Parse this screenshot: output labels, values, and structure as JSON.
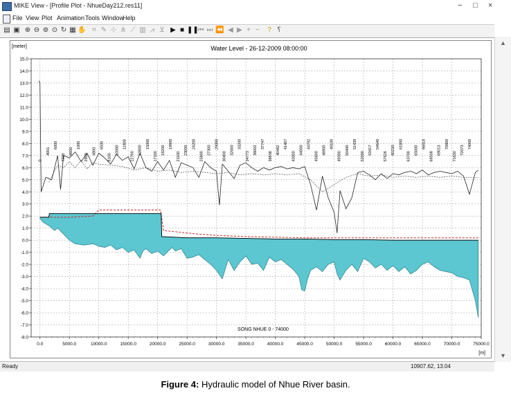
{
  "window": {
    "title": "MIKE View - [Profile Plot - NhueDay212.res11]",
    "controls": [
      "−",
      "□",
      "×"
    ]
  },
  "menu": [
    "File",
    "View",
    "Plot",
    "Animation",
    "Tools",
    "Window",
    "Help"
  ],
  "toolbar": {
    "icons": [
      "print-icon",
      "save-icon",
      "zoom-in-icon",
      "zoom-out-icon",
      "zoom-window-icon",
      "zoom-full-icon",
      "refresh-icon",
      "properties-icon",
      "pan-hand-icon",
      "select-icon",
      "edit-icon",
      "measure-icon",
      "branch-icon",
      "profile-icon",
      "table-icon",
      "graph-icon",
      "cross-section-icon",
      "play-icon",
      "stop-icon",
      "pause-icon",
      "first-frame-icon",
      "last-frame-icon",
      "step-back-icon",
      "step-forward-icon",
      "previous-icon",
      "next-icon",
      "add-icon",
      "remove-icon",
      "help-icon",
      "context-help-icon"
    ]
  },
  "status": {
    "left": "Ready",
    "right": "10907.62, 13.04"
  },
  "caption": {
    "prefix": "Figure 4:",
    "text": " Hydraulic model of Nhue River basin."
  },
  "colors": {
    "bed_fill": "#5cc6d1",
    "bed_stroke": "#1a6f78",
    "water_line": "#000000",
    "red_dashed": "#cc2222",
    "grid": "#9a9a9a"
  },
  "chart_data": {
    "type": "area",
    "title": "Water Level - 26-12-2009 08:00:00",
    "ylabel": "[meter]",
    "xlabel": "[m]",
    "bottom_label": "SONG NHUE 0 - 74000",
    "xlim": [
      -1500,
      75000
    ],
    "ylim": [
      -8.0,
      15.0
    ],
    "grid": true,
    "yticks": [
      15.0,
      14.0,
      13.0,
      12.0,
      11.0,
      10.0,
      9.0,
      8.0,
      7.0,
      6.0,
      5.0,
      4.0,
      3.0,
      2.0,
      1.0,
      0.0,
      -1.0,
      -2.0,
      -3.0,
      -4.0,
      -5.0,
      -6.0,
      -7.0,
      -8.0
    ],
    "xticks": [
      0,
      5000,
      10000,
      15000,
      20000,
      25000,
      30000,
      35000,
      40000,
      45000,
      50000,
      55000,
      60000,
      65000,
      70000,
      75000
    ],
    "series": [
      {
        "role": "bed",
        "x": [
          0,
          500,
          1500,
          2500,
          3000,
          4000,
          5000,
          6000,
          7500,
          9000,
          10000,
          11000,
          12000,
          13000,
          14000,
          15000,
          16000,
          17000,
          17500,
          18000,
          19000,
          20000,
          21000,
          22000,
          22500,
          23000,
          24000,
          25000,
          26000,
          27000,
          28000,
          29000,
          30000,
          31000,
          32000,
          33000,
          34000,
          35000,
          36000,
          37000,
          38000,
          39000,
          40000,
          41000,
          42000,
          43000,
          44000,
          44500,
          45000,
          45500,
          46000,
          47000,
          48000,
          49000,
          50000,
          50500,
          51000,
          52000,
          53000,
          54000,
          55000,
          56000,
          57000,
          58000,
          59000,
          60000,
          61000,
          62000,
          63000,
          64000,
          65000,
          66000,
          67000,
          68000,
          69000,
          70000,
          71000,
          72000,
          73000,
          74000,
          74500
        ],
        "y": [
          1.8,
          1.5,
          1.2,
          0.8,
          1.0,
          0.5,
          0.0,
          -0.3,
          -0.4,
          -0.3,
          -0.5,
          -0.6,
          -0.4,
          -0.8,
          -0.6,
          -1.0,
          -0.8,
          -1.5,
          -0.9,
          -0.7,
          -1.1,
          -0.9,
          -1.3,
          -0.8,
          -0.6,
          -0.9,
          -0.7,
          -1.5,
          -1.4,
          -1.2,
          -1.6,
          -2.0,
          -2.5,
          -3.2,
          -1.6,
          -2.5,
          -1.8,
          -1.3,
          -2.0,
          -1.9,
          -2.5,
          -1.4,
          -1.8,
          -1.6,
          -2.0,
          -2.4,
          -3.0,
          -4.1,
          -4.2,
          -3.2,
          -2.5,
          -2.2,
          -2.6,
          -2.0,
          -1.8,
          -2.8,
          -3.3,
          -2.5,
          -2.0,
          -2.6,
          -1.5,
          -1.8,
          -2.3,
          -2.0,
          -2.5,
          -2.1,
          -2.6,
          -2.2,
          -2.8,
          -2.5,
          -2.0,
          -1.8,
          -2.2,
          -2.5,
          -2.6,
          -2.7,
          -3.0,
          -3.1,
          -3.3,
          -5.0,
          -6.4
        ]
      },
      {
        "role": "water_level",
        "x": [
          0,
          1500,
          1600,
          20600,
          20700,
          25000,
          30000,
          35000,
          40000,
          45000,
          50000,
          55000,
          60000,
          65000,
          70000,
          74500
        ],
        "y": [
          1.9,
          1.9,
          2.2,
          2.2,
          0.3,
          0.2,
          0.2,
          0.15,
          0.1,
          0.1,
          0.05,
          0.05,
          0.0,
          0.0,
          0.0,
          0.0
        ]
      },
      {
        "role": "red_dashed",
        "x": [
          0,
          5000,
          9000,
          10000,
          20500,
          21000,
          27000,
          30000,
          35000,
          45000,
          55000,
          65000,
          74500
        ],
        "y": [
          1.9,
          1.9,
          2.0,
          2.5,
          2.5,
          0.8,
          0.5,
          0.4,
          0.3,
          0.2,
          0.2,
          0.2,
          0.2
        ]
      },
      {
        "role": "bank_left",
        "x": [
          -200,
          0,
          200,
          1000,
          2000,
          3000,
          3500,
          4000,
          5000,
          6000,
          7000,
          8000,
          9000,
          10000,
          11000,
          12000,
          13000,
          14000,
          15000,
          16000,
          17000,
          18000,
          19000,
          20000,
          21000,
          22000,
          23000,
          24000,
          25000,
          26000,
          27000,
          28000,
          29000,
          30000,
          30500,
          31000,
          32000,
          33000,
          34000,
          35000,
          36000,
          37000,
          38000,
          39000,
          40000,
          41000,
          42000,
          43000,
          44000,
          45000,
          46000,
          47000,
          48000,
          49000,
          50000,
          50500,
          51000,
          52000,
          53000,
          54000,
          55000,
          56000,
          57000,
          58000,
          59000,
          60000,
          61000,
          62000,
          63000,
          64000,
          65000,
          66000,
          67000,
          68000,
          69000,
          70000,
          71000,
          72000,
          73000,
          74000,
          74500
        ],
        "y": [
          13.2,
          13.0,
          4.0,
          5.2,
          5.0,
          7.0,
          4.2,
          7.0,
          6.8,
          7.3,
          6.5,
          7.2,
          6.2,
          7.2,
          6.8,
          6.3,
          7.1,
          6.6,
          6.9,
          5.9,
          7.2,
          6.0,
          5.7,
          6.5,
          5.8,
          6.6,
          5.2,
          6.4,
          6.2,
          6.0,
          5.2,
          6.5,
          6.0,
          5.7,
          2.9,
          6.3,
          5.7,
          5.1,
          6.2,
          6.4,
          6.0,
          5.7,
          6.0,
          5.8,
          6.0,
          6.1,
          5.9,
          6.0,
          5.9,
          6.1,
          4.6,
          2.5,
          5.3,
          3.5,
          2.3,
          0.6,
          4.1,
          2.6,
          3.5,
          5.6,
          5.7,
          5.4,
          5.0,
          5.5,
          5.1,
          5.5,
          5.4,
          5.6,
          5.7,
          5.5,
          5.8,
          5.4,
          5.6,
          5.7,
          5.6,
          5.5,
          5.7,
          5.3,
          3.8,
          5.6,
          5.8
        ]
      },
      {
        "role": "bank_right",
        "x": [
          1500,
          3000,
          4000,
          5000,
          6000,
          7000,
          8000,
          9000,
          10000,
          12000,
          14000,
          16000,
          18000,
          20000,
          22000,
          24000,
          26000,
          28000,
          30000,
          32000,
          34000,
          36000,
          38000,
          40000,
          42000,
          44000,
          46000,
          48000,
          50000,
          52000,
          54000,
          56000,
          58000,
          60000,
          62000,
          64000,
          66000,
          68000,
          70000,
          72000,
          74500
        ],
        "y": [
          4.8,
          6.2,
          6.0,
          6.5,
          6.0,
          6.6,
          5.9,
          6.4,
          6.3,
          6.2,
          6.1,
          5.8,
          6.0,
          5.7,
          5.8,
          5.6,
          5.7,
          5.6,
          5.5,
          5.6,
          5.4,
          5.5,
          5.4,
          5.5,
          5.4,
          5.5,
          5.0,
          4.0,
          4.6,
          5.2,
          5.5,
          5.3,
          5.4,
          5.2,
          5.3,
          5.2,
          5.3,
          5.2,
          5.3,
          5.2,
          5.2
        ]
      }
    ],
    "annotations": [
      "0",
      "4001",
      "6000",
      "7300",
      "9600",
      "1000",
      "2900",
      "4800",
      "6500",
      "8100",
      "10000",
      "11800",
      "12700",
      "13600",
      "15000",
      "17100",
      "18200",
      "19800",
      "21100",
      "23000",
      "24200",
      "25800",
      "27300",
      "29000",
      "30400",
      "32000",
      "33200",
      "34773",
      "36002",
      "37747",
      "38838",
      "40482",
      "41467",
      "43000",
      "44000",
      "44792",
      "45600",
      "46900",
      "48100",
      "49300",
      "50400",
      "51438",
      "52000",
      "53417",
      "54640",
      "57626",
      "60230",
      "61800",
      "63700",
      "65000",
      "66818",
      "68508",
      "69013",
      "70800",
      "71630",
      "72073",
      "74000"
    ],
    "label_y": 6.5
  }
}
